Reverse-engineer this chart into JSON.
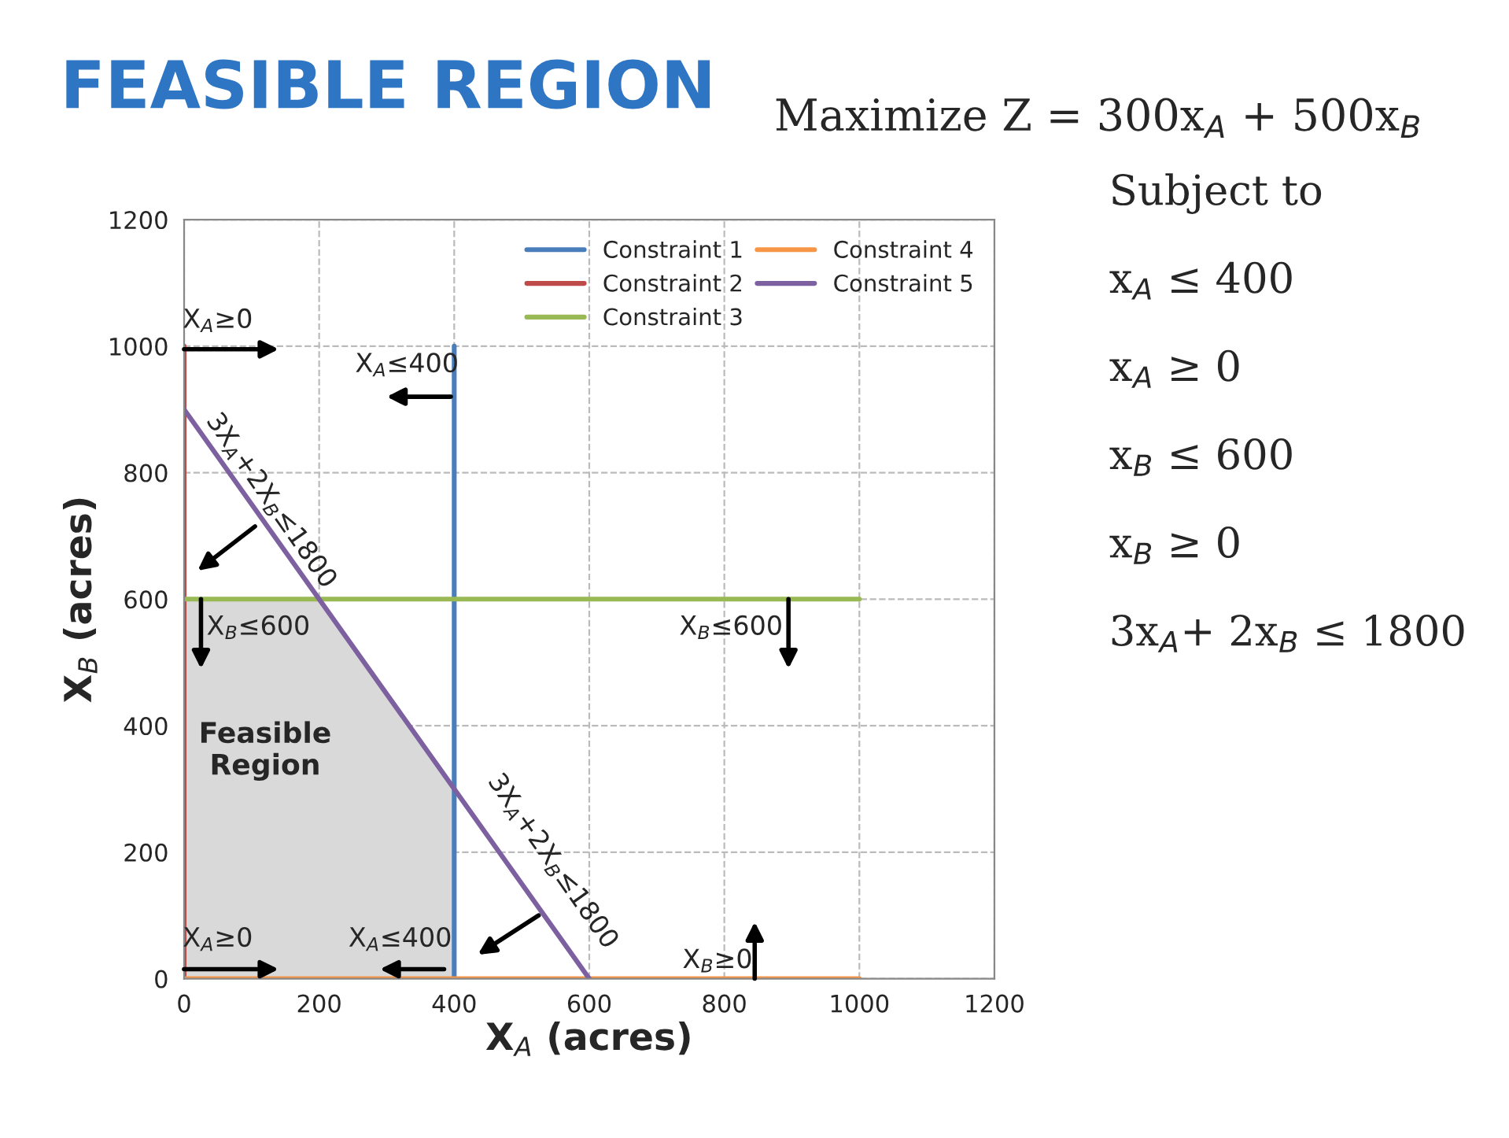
{
  "chart_data": {
    "type": "line",
    "title": "FEASIBLE REGION",
    "xlabel": "X$_{A}$ (acres)",
    "ylabel": "X$_{B}$ (acres)",
    "series": [
      {
        "type": "area",
        "color": "#d9d9d9",
        "x": [
          0,
          200,
          400
        ],
        "values": [
          600,
          600,
          300
        ]
      },
      {
        "name": "Constraint 1",
        "color": "#4a7ebb",
        "x": [
          400,
          400
        ],
        "values": [
          0,
          1000
        ]
      },
      {
        "name": "Constraint 2",
        "color": "#be4b48",
        "x": [
          0,
          0
        ],
        "values": [
          0,
          1000
        ]
      },
      {
        "name": "Constraint 3",
        "color": "#98b954",
        "x": [
          0,
          1000
        ],
        "values": [
          600,
          600
        ]
      },
      {
        "name": "Constraint 4",
        "color": "#f79646",
        "x": [
          0,
          1000
        ],
        "values": [
          0,
          0
        ]
      },
      {
        "name": "Constraint 5",
        "color": "#7d60a0",
        "x": [
          0,
          600
        ],
        "values": [
          900,
          0
        ]
      }
    ],
    "xlim": [
      0,
      1200
    ],
    "ylim": [
      0,
      1200
    ],
    "xticks": [
      0,
      200,
      400,
      600,
      800,
      1000,
      1200
    ],
    "yticks": [
      0,
      200,
      400,
      600,
      800,
      1000,
      1200
    ],
    "grid": true,
    "legend": "top right",
    "annotations": [
      "X$_{A}$≥0",
      "X$_{A}$≤400",
      "3X$_{A}$+2X$_{B}$≤1800",
      "X$_{B}$≤600",
      "X$_{B}$≤600",
      "Feasible\nRegion",
      "3X$_{A}$+2X$_{B}$≤1800",
      "X$_{A}$≥0",
      "X$_{A}$≤400",
      "X$_{B}$≥0",
      "Maximize Z = 300x$_{A}$ + 500x$_{B}$",
      "Subject to",
      "x$_{A}$ ≤ 400",
      "x$_{A}$ ≥ 0",
      "x$_{B}$ ≤ 600",
      "x$_{B}$ ≥ 0",
      "3x$_{A}$+ 2x$_{B}$ ≤ 1800"
    ]
  }
}
